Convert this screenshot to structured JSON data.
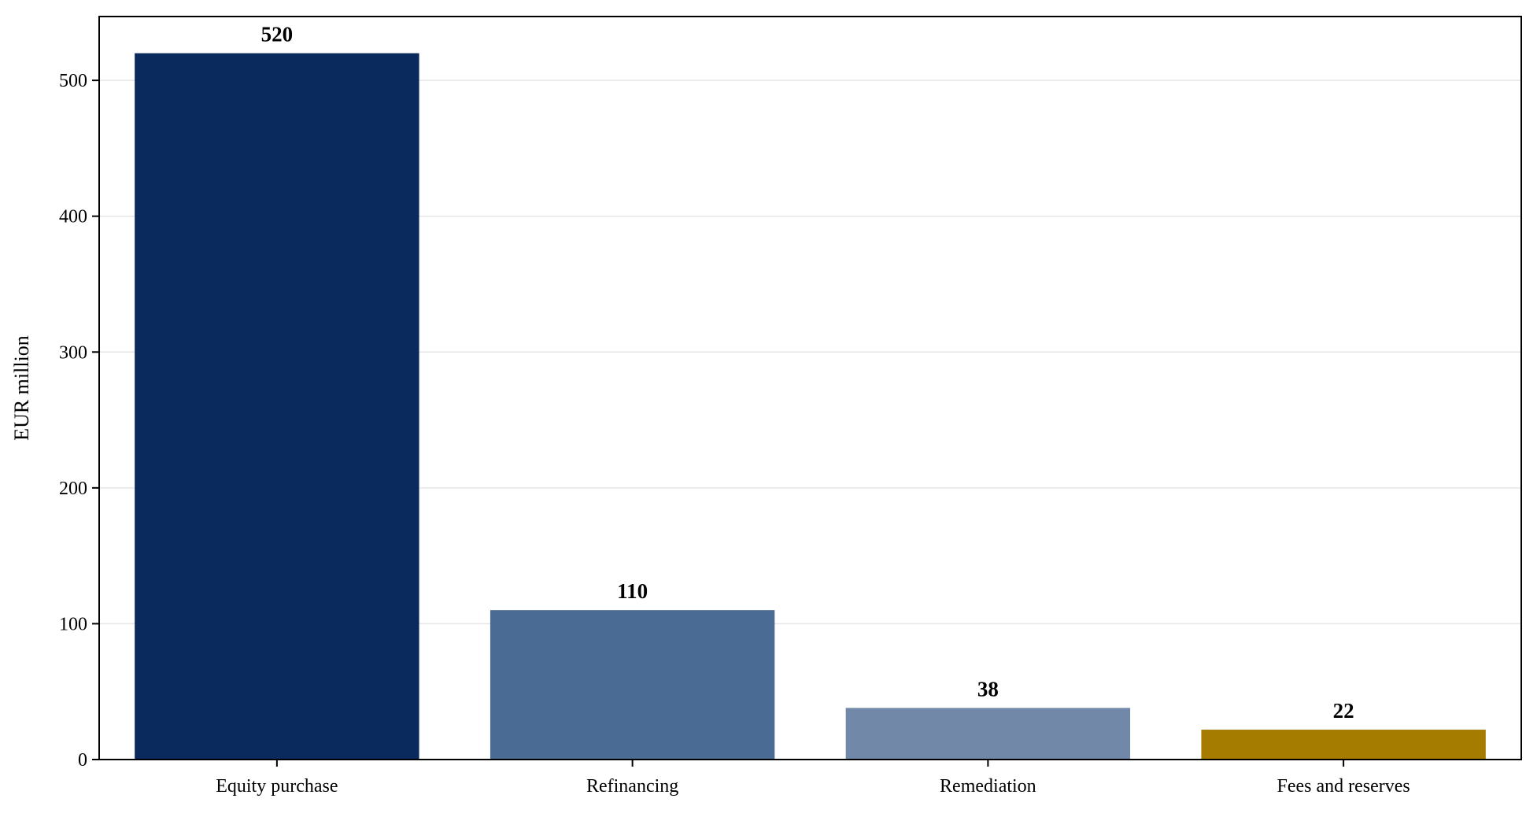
{
  "chart_data": {
    "type": "bar",
    "title": "",
    "xlabel": "",
    "ylabel": "EUR million",
    "categories": [
      "Equity purchase",
      "Refinancing",
      "Remediation",
      "Fees and reserves"
    ],
    "values": [
      520,
      110,
      38,
      22
    ],
    "value_labels": [
      "520",
      "110",
      "38",
      "22"
    ],
    "colors": [
      "#0a2a5e",
      "#4a6b94",
      "#7188a8",
      "#a67c00"
    ],
    "ylim": [
      0,
      547
    ],
    "yticks": [
      0,
      100,
      200,
      300,
      400,
      500
    ],
    "ytick_labels": [
      "0",
      "100",
      "200",
      "300",
      "400",
      "500"
    ],
    "grid": "y",
    "legend": "none"
  }
}
